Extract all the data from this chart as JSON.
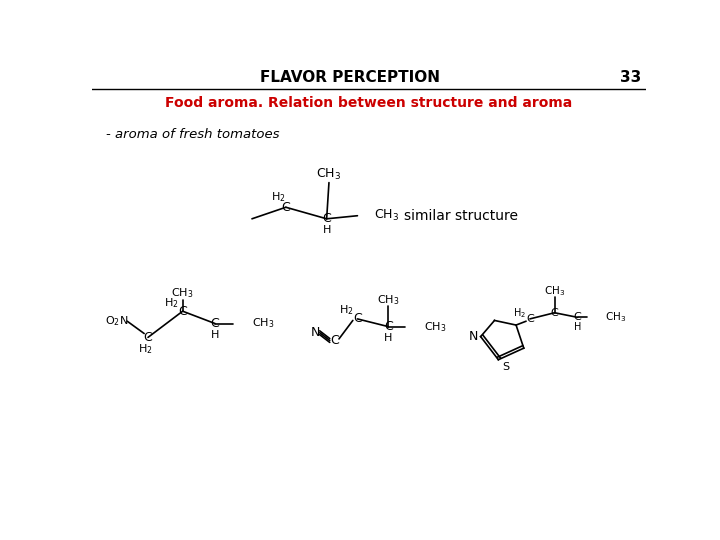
{
  "title": "FLAVOR PERCEPTION",
  "page_num": "33",
  "subtitle": "Food aroma. Relation between structure and aroma",
  "subtitle_color": "#cc0000",
  "bullet": "- aroma of fresh tomatoes",
  "similar_structure_label": "similar structure",
  "bg_color": "#ffffff",
  "title_fontsize": 11,
  "subtitle_fontsize": 10,
  "bullet_fontsize": 9.5
}
